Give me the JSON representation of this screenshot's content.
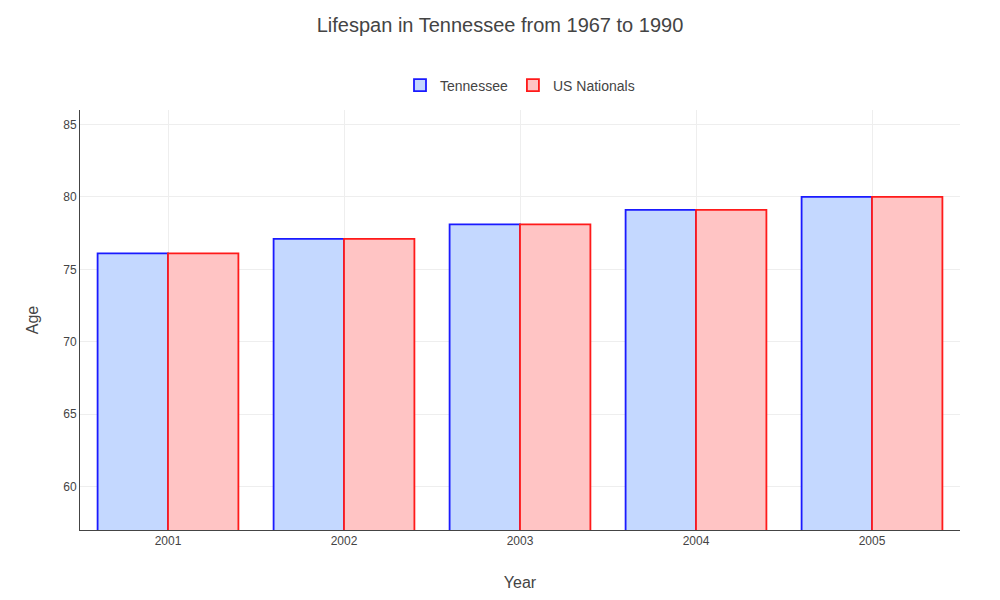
{
  "chart_data": {
    "type": "bar",
    "title": "Lifespan in Tennessee from 1967 to 1990",
    "x_label": "Year",
    "y_label": "Age",
    "categories": [
      "2001",
      "2002",
      "2003",
      "2004",
      "2005"
    ],
    "series": [
      {
        "name": "Tennessee",
        "color": "#c4d8ff",
        "values": [
          76.1,
          77.1,
          78.1,
          79.1,
          80.0
        ]
      },
      {
        "name": "US Nationals",
        "color": "#ffc4c4",
        "values": [
          76.1,
          77.1,
          78.1,
          79.1,
          80.0
        ]
      }
    ],
    "ylim": [
      57,
      86
    ],
    "yticks": [
      60,
      65,
      70,
      75,
      80,
      85
    ],
    "grid": true,
    "legend": "top"
  }
}
